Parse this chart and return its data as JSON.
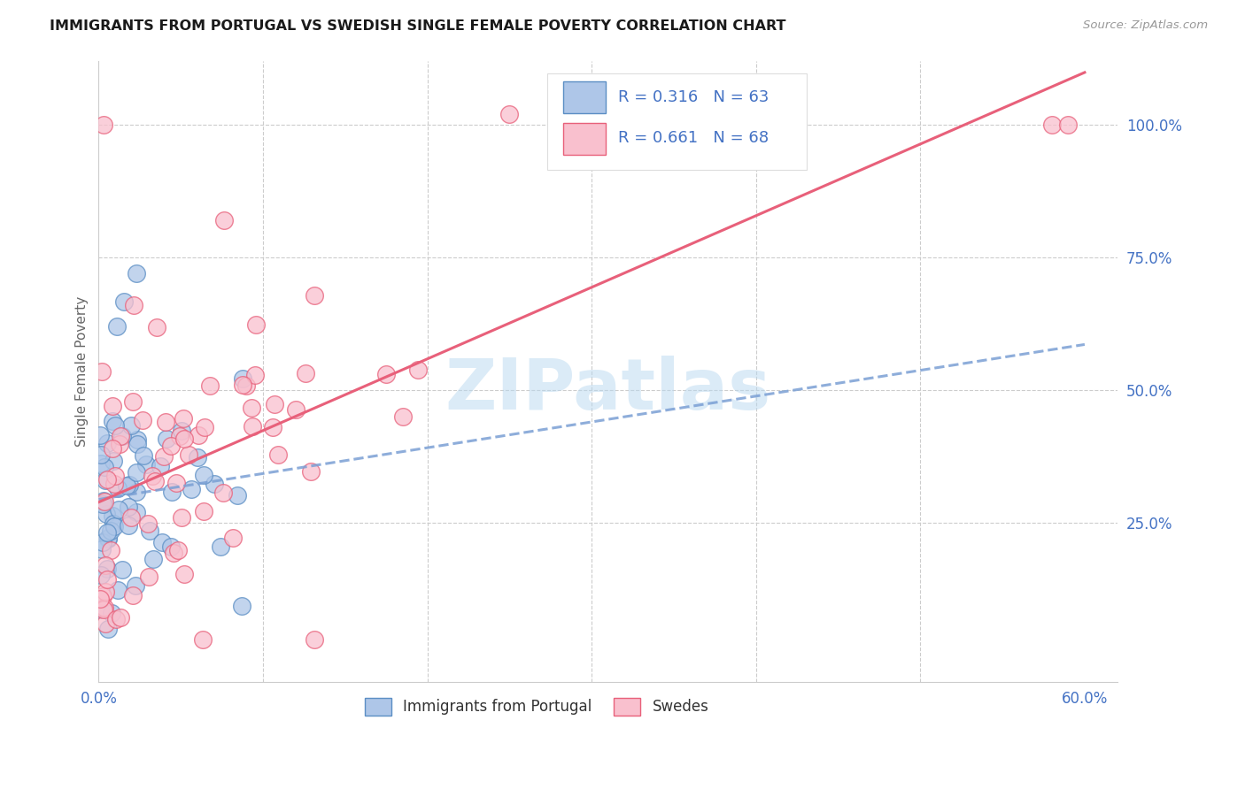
{
  "title": "IMMIGRANTS FROM PORTUGAL VS SWEDISH SINGLE FEMALE POVERTY CORRELATION CHART",
  "source": "Source: ZipAtlas.com",
  "ylabel": "Single Female Poverty",
  "watermark": "ZIPatlas",
  "legend_label1": "Immigrants from Portugal",
  "legend_label2": "Swedes",
  "r1": 0.316,
  "n1": 63,
  "r2": 0.661,
  "n2": 68,
  "xlim": [
    0.0,
    0.62
  ],
  "ylim": [
    -0.05,
    1.12
  ],
  "xtick_positions": [
    0.0,
    0.1,
    0.2,
    0.3,
    0.4,
    0.5,
    0.6
  ],
  "xticklabels": [
    "0.0%",
    "",
    "",
    "",
    "",
    "",
    "60.0%"
  ],
  "yticks_right": [
    0.25,
    0.5,
    0.75,
    1.0
  ],
  "ytick_right_labels": [
    "25.0%",
    "50.0%",
    "75.0%",
    "100.0%"
  ],
  "color_blue_fill": "#aec6e8",
  "color_blue_edge": "#5b8ec4",
  "color_pink_fill": "#f9c0ce",
  "color_pink_edge": "#e8607a",
  "color_blue_line": "#7a9fd4",
  "color_pink_line": "#e8607a",
  "grid_color": "#cccccc",
  "title_color": "#1a1a1a",
  "axis_color": "#4472c4",
  "ylabel_color": "#666666",
  "watermark_color": "#b8d8f0",
  "blue_intercept": 0.245,
  "blue_slope": 0.85,
  "pink_intercept": 0.12,
  "pink_slope": 1.45
}
